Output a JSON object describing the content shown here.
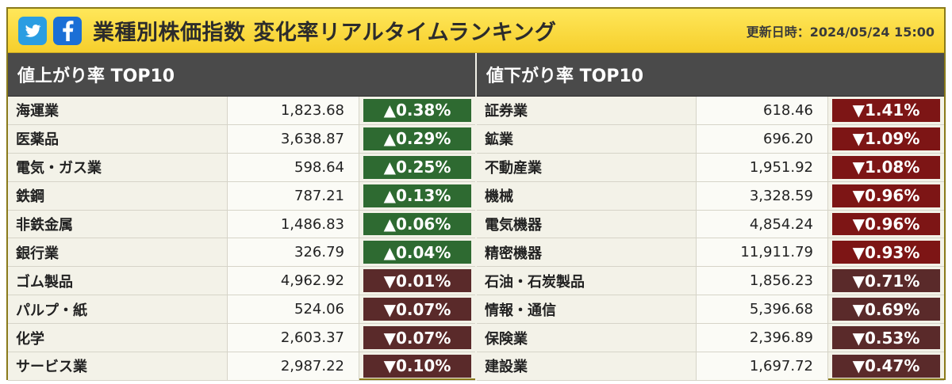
{
  "header": {
    "title": "業種別株価指数 変化率リアルタイムランキング",
    "updated": "更新日時：2024/05/24 15:00",
    "icons": [
      "twitter-icon",
      "facebook-icon"
    ]
  },
  "colors": {
    "up": "#2e6a31",
    "down_mild": "#5a2a2a",
    "down_strong": "#7d1515"
  },
  "gainers": {
    "heading": "値上がり率 TOP10",
    "rows": [
      {
        "name": "海運業",
        "value": "1,823.68",
        "change": "▲0.38%",
        "dir": "up"
      },
      {
        "name": "医薬品",
        "value": "3,638.87",
        "change": "▲0.29%",
        "dir": "up"
      },
      {
        "name": "電気・ガス業",
        "value": "598.64",
        "change": "▲0.25%",
        "dir": "up"
      },
      {
        "name": "鉄鋼",
        "value": "787.21",
        "change": "▲0.13%",
        "dir": "up"
      },
      {
        "name": "非鉄金属",
        "value": "1,486.83",
        "change": "▲0.06%",
        "dir": "up"
      },
      {
        "name": "銀行業",
        "value": "326.79",
        "change": "▲0.04%",
        "dir": "up"
      },
      {
        "name": "ゴム製品",
        "value": "4,962.92",
        "change": "▼0.01%",
        "dir": "down"
      },
      {
        "name": "パルプ・紙",
        "value": "524.06",
        "change": "▼0.07%",
        "dir": "down"
      },
      {
        "name": "化学",
        "value": "2,603.37",
        "change": "▼0.07%",
        "dir": "down"
      },
      {
        "name": "サービス業",
        "value": "2,987.22",
        "change": "▼0.10%",
        "dir": "down"
      }
    ]
  },
  "losers": {
    "heading": "値下がり率 TOP10",
    "rows": [
      {
        "name": "証券業",
        "value": "618.46",
        "change": "▼1.41%",
        "dir": "down-strong"
      },
      {
        "name": "鉱業",
        "value": "696.20",
        "change": "▼1.09%",
        "dir": "down-strong"
      },
      {
        "name": "不動産業",
        "value": "1,951.92",
        "change": "▼1.08%",
        "dir": "down-strong"
      },
      {
        "name": "機械",
        "value": "3,328.59",
        "change": "▼0.96%",
        "dir": "down-strong"
      },
      {
        "name": "電気機器",
        "value": "4,854.24",
        "change": "▼0.96%",
        "dir": "down-strong"
      },
      {
        "name": "精密機器",
        "value": "11,911.79",
        "change": "▼0.93%",
        "dir": "down-strong"
      },
      {
        "name": "石油・石炭製品",
        "value": "1,856.23",
        "change": "▼0.71%",
        "dir": "down"
      },
      {
        "name": "情報・通信",
        "value": "5,396.68",
        "change": "▼0.69%",
        "dir": "down"
      },
      {
        "name": "保険業",
        "value": "2,396.89",
        "change": "▼0.53%",
        "dir": "down"
      },
      {
        "name": "建設業",
        "value": "1,697.72",
        "change": "▼0.47%",
        "dir": "down"
      }
    ]
  }
}
